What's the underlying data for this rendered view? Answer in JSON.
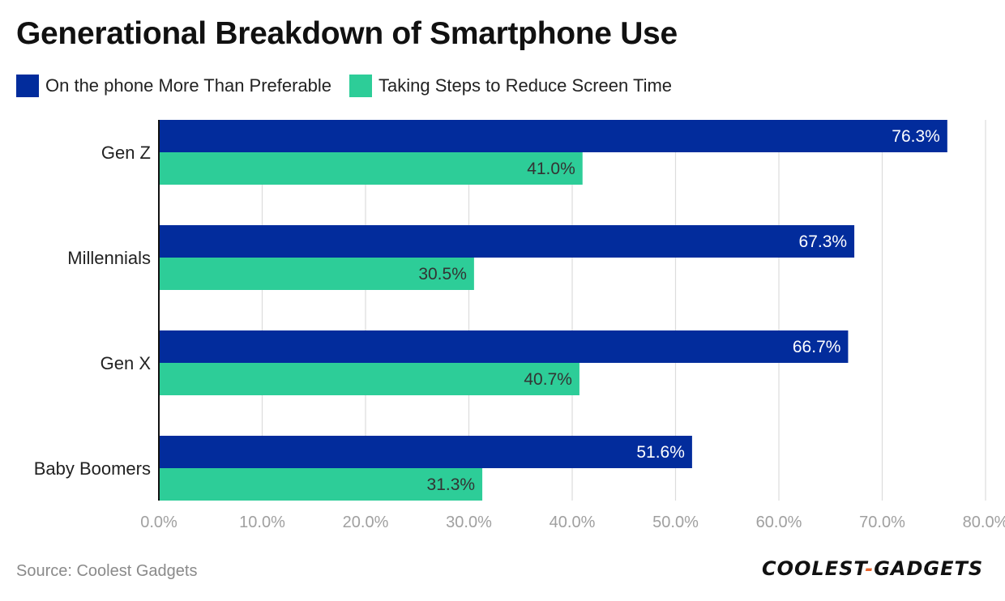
{
  "title": "Generational Breakdown of Smartphone Use",
  "source": "Source: Coolest Gadgets",
  "logo": {
    "left": "COOLEST",
    "dash": "-",
    "right": "GADGETS"
  },
  "chart_data": {
    "type": "bar",
    "orientation": "horizontal",
    "title": "Generational Breakdown of Smartphone Use",
    "categories": [
      "Gen Z",
      "Millennials",
      "Gen X",
      "Baby Boomers"
    ],
    "series": [
      {
        "name": "On the phone More Than Preferable",
        "values": [
          76.3,
          67.3,
          66.7,
          51.6
        ],
        "color": "#022c9c"
      },
      {
        "name": "Taking Steps to Reduce Screen Time",
        "values": [
          41.0,
          30.5,
          40.7,
          31.3
        ],
        "color": "#2dcd98"
      }
    ],
    "xlim": [
      0,
      80
    ],
    "xticks": [
      0,
      10,
      20,
      30,
      40,
      50,
      60,
      70,
      80
    ],
    "tick_format": "0.0%",
    "grid": true,
    "legend": "top-left"
  }
}
